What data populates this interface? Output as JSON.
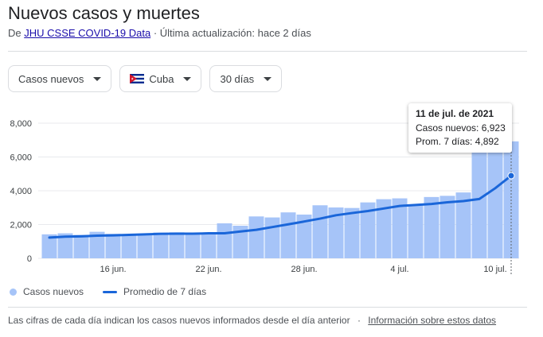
{
  "header": {
    "title": "Nuevos casos y muertes",
    "source_prefix": "De",
    "source_link": "JHU CSSE COVID-19 Data",
    "source_separator": "·",
    "last_update": "Última actualización: hace 2 días"
  },
  "filters": {
    "metric": "Casos nuevos",
    "country": "Cuba",
    "range": "30 días"
  },
  "tooltip": {
    "date": "11 de jul. de 2021",
    "cases_label": "Casos nuevos: 6,923",
    "avg_label": "Prom. 7 días: 4,892"
  },
  "legend": {
    "bars_label": "Casos nuevos",
    "line_label": "Promedio de 7 días"
  },
  "footer": {
    "note": "Las cifras de cada día indican los casos nuevos informados desde el día anterior",
    "separator": "·",
    "link": "Información sobre estos datos"
  },
  "colors": {
    "bar": "#a6c4f8",
    "line": "#1a66d9",
    "grid": "#e8eaed",
    "hover_line": "#5f6368"
  },
  "chart_data": {
    "type": "bar",
    "title": "",
    "xlabel": "",
    "ylabel": "",
    "ylim": [
      0,
      8000
    ],
    "yticks": [
      "0",
      "2,000",
      "4,000",
      "6,000",
      "8,000"
    ],
    "categories": [
      "12 jun.",
      "13 jun.",
      "14 jun.",
      "15 jun.",
      "16 jun.",
      "17 jun.",
      "18 jun.",
      "19 jun.",
      "20 jun.",
      "21 jun.",
      "22 jun.",
      "23 jun.",
      "24 jun.",
      "25 jun.",
      "26 jun.",
      "27 jun.",
      "28 jun.",
      "29 jun.",
      "30 jun.",
      "1 jul.",
      "2 jul.",
      "3 jul.",
      "4 jul.",
      "5 jul.",
      "6 jul.",
      "7 jul.",
      "8 jul.",
      "9 jul.",
      "10 jul.",
      "11 jul."
    ],
    "xtick_labels": [
      {
        "category": "16 jun.",
        "label": "16 jun."
      },
      {
        "category": "22 jun.",
        "label": "22 jun."
      },
      {
        "category": "28 jun.",
        "label": "28 jun."
      },
      {
        "category": "4 jul.",
        "label": "4 jul."
      },
      {
        "category": "10 jul.",
        "label": "10 jul."
      }
    ],
    "grid": true,
    "legend_position": "bottom-left",
    "series": [
      {
        "name": "Casos nuevos",
        "type": "bar",
        "values": [
          1420,
          1480,
          1390,
          1570,
          1450,
          1400,
          1450,
          1530,
          1540,
          1520,
          1500,
          2070,
          1930,
          2480,
          2420,
          2720,
          2590,
          3140,
          3010,
          2980,
          3310,
          3500,
          3550,
          3150,
          3630,
          3700,
          3900,
          6420,
          6420,
          6923
        ]
      },
      {
        "name": "Promedio de 7 días",
        "type": "line",
        "values": [
          1230,
          1280,
          1300,
          1340,
          1360,
          1390,
          1420,
          1450,
          1460,
          1460,
          1480,
          1480,
          1590,
          1690,
          1850,
          2010,
          2180,
          2350,
          2550,
          2680,
          2800,
          2950,
          3100,
          3160,
          3220,
          3320,
          3390,
          3510,
          4150,
          4892
        ]
      }
    ],
    "highlight": {
      "category": "11 jul.",
      "cases": 6923,
      "average": 4892
    }
  }
}
